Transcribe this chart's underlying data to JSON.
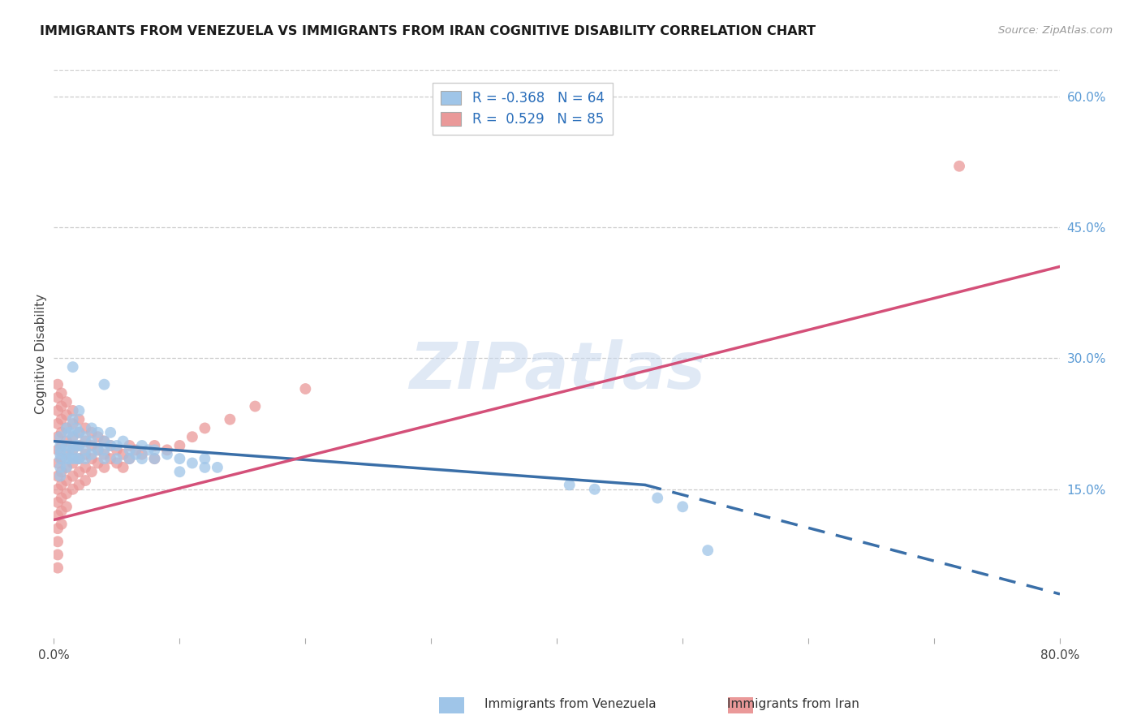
{
  "title": "IMMIGRANTS FROM VENEZUELA VS IMMIGRANTS FROM IRAN COGNITIVE DISABILITY CORRELATION CHART",
  "source": "Source: ZipAtlas.com",
  "ylabel": "Cognitive Disability",
  "x_min": 0.0,
  "x_max": 0.8,
  "y_min": -0.02,
  "y_max": 0.63,
  "y_ticks_right": [
    0.15,
    0.3,
    0.45,
    0.6
  ],
  "y_tick_labels_right": [
    "15.0%",
    "30.0%",
    "45.0%",
    "60.0%"
  ],
  "venezuela_color": "#9fc5e8",
  "iran_color": "#ea9999",
  "venezuela_R": -0.368,
  "venezuela_N": 64,
  "iran_R": 0.529,
  "iran_N": 85,
  "title_color": "#1a1a1a",
  "source_color": "#999999",
  "grid_color": "#cccccc",
  "watermark": "ZIPatlas",
  "venezuela_scatter": [
    [
      0.005,
      0.195
    ],
    [
      0.005,
      0.185
    ],
    [
      0.005,
      0.175
    ],
    [
      0.005,
      0.165
    ],
    [
      0.005,
      0.21
    ],
    [
      0.005,
      0.2
    ],
    [
      0.005,
      0.19
    ],
    [
      0.01,
      0.22
    ],
    [
      0.01,
      0.2
    ],
    [
      0.01,
      0.185
    ],
    [
      0.01,
      0.175
    ],
    [
      0.012,
      0.215
    ],
    [
      0.012,
      0.195
    ],
    [
      0.012,
      0.185
    ],
    [
      0.015,
      0.23
    ],
    [
      0.015,
      0.21
    ],
    [
      0.015,
      0.195
    ],
    [
      0.015,
      0.185
    ],
    [
      0.018,
      0.22
    ],
    [
      0.018,
      0.2
    ],
    [
      0.018,
      0.185
    ],
    [
      0.02,
      0.24
    ],
    [
      0.02,
      0.215
    ],
    [
      0.02,
      0.2
    ],
    [
      0.02,
      0.185
    ],
    [
      0.025,
      0.195
    ],
    [
      0.025,
      0.21
    ],
    [
      0.025,
      0.185
    ],
    [
      0.03,
      0.22
    ],
    [
      0.03,
      0.205
    ],
    [
      0.03,
      0.19
    ],
    [
      0.035,
      0.195
    ],
    [
      0.035,
      0.215
    ],
    [
      0.04,
      0.205
    ],
    [
      0.04,
      0.185
    ],
    [
      0.04,
      0.195
    ],
    [
      0.045,
      0.2
    ],
    [
      0.045,
      0.215
    ],
    [
      0.05,
      0.2
    ],
    [
      0.05,
      0.185
    ],
    [
      0.055,
      0.205
    ],
    [
      0.06,
      0.195
    ],
    [
      0.06,
      0.185
    ],
    [
      0.065,
      0.19
    ],
    [
      0.07,
      0.2
    ],
    [
      0.07,
      0.185
    ],
    [
      0.075,
      0.195
    ],
    [
      0.08,
      0.185
    ],
    [
      0.08,
      0.195
    ],
    [
      0.09,
      0.19
    ],
    [
      0.1,
      0.185
    ],
    [
      0.1,
      0.17
    ],
    [
      0.11,
      0.18
    ],
    [
      0.12,
      0.175
    ],
    [
      0.12,
      0.185
    ],
    [
      0.13,
      0.175
    ],
    [
      0.015,
      0.29
    ],
    [
      0.04,
      0.27
    ],
    [
      0.41,
      0.155
    ],
    [
      0.43,
      0.15
    ],
    [
      0.48,
      0.14
    ],
    [
      0.5,
      0.13
    ],
    [
      0.52,
      0.08
    ]
  ],
  "iran_scatter": [
    [
      0.003,
      0.27
    ],
    [
      0.003,
      0.255
    ],
    [
      0.003,
      0.24
    ],
    [
      0.003,
      0.225
    ],
    [
      0.003,
      0.21
    ],
    [
      0.003,
      0.195
    ],
    [
      0.003,
      0.18
    ],
    [
      0.003,
      0.165
    ],
    [
      0.003,
      0.15
    ],
    [
      0.003,
      0.135
    ],
    [
      0.003,
      0.12
    ],
    [
      0.003,
      0.105
    ],
    [
      0.003,
      0.09
    ],
    [
      0.003,
      0.075
    ],
    [
      0.003,
      0.06
    ],
    [
      0.006,
      0.26
    ],
    [
      0.006,
      0.245
    ],
    [
      0.006,
      0.23
    ],
    [
      0.006,
      0.215
    ],
    [
      0.006,
      0.2
    ],
    [
      0.006,
      0.185
    ],
    [
      0.006,
      0.17
    ],
    [
      0.006,
      0.155
    ],
    [
      0.006,
      0.14
    ],
    [
      0.006,
      0.125
    ],
    [
      0.006,
      0.11
    ],
    [
      0.01,
      0.25
    ],
    [
      0.01,
      0.235
    ],
    [
      0.01,
      0.22
    ],
    [
      0.01,
      0.205
    ],
    [
      0.01,
      0.19
    ],
    [
      0.01,
      0.175
    ],
    [
      0.01,
      0.16
    ],
    [
      0.01,
      0.145
    ],
    [
      0.01,
      0.13
    ],
    [
      0.015,
      0.24
    ],
    [
      0.015,
      0.225
    ],
    [
      0.015,
      0.21
    ],
    [
      0.015,
      0.195
    ],
    [
      0.015,
      0.18
    ],
    [
      0.015,
      0.165
    ],
    [
      0.015,
      0.15
    ],
    [
      0.02,
      0.23
    ],
    [
      0.02,
      0.215
    ],
    [
      0.02,
      0.2
    ],
    [
      0.02,
      0.185
    ],
    [
      0.02,
      0.17
    ],
    [
      0.02,
      0.155
    ],
    [
      0.025,
      0.22
    ],
    [
      0.025,
      0.205
    ],
    [
      0.025,
      0.19
    ],
    [
      0.025,
      0.175
    ],
    [
      0.025,
      0.16
    ],
    [
      0.03,
      0.215
    ],
    [
      0.03,
      0.2
    ],
    [
      0.03,
      0.185
    ],
    [
      0.03,
      0.17
    ],
    [
      0.035,
      0.21
    ],
    [
      0.035,
      0.195
    ],
    [
      0.035,
      0.18
    ],
    [
      0.04,
      0.205
    ],
    [
      0.04,
      0.19
    ],
    [
      0.04,
      0.175
    ],
    [
      0.045,
      0.2
    ],
    [
      0.045,
      0.185
    ],
    [
      0.05,
      0.195
    ],
    [
      0.05,
      0.18
    ],
    [
      0.055,
      0.19
    ],
    [
      0.055,
      0.175
    ],
    [
      0.06,
      0.2
    ],
    [
      0.06,
      0.185
    ],
    [
      0.065,
      0.195
    ],
    [
      0.07,
      0.19
    ],
    [
      0.08,
      0.2
    ],
    [
      0.08,
      0.185
    ],
    [
      0.09,
      0.195
    ],
    [
      0.1,
      0.2
    ],
    [
      0.11,
      0.21
    ],
    [
      0.12,
      0.22
    ],
    [
      0.14,
      0.23
    ],
    [
      0.16,
      0.245
    ],
    [
      0.2,
      0.265
    ],
    [
      0.72,
      0.52
    ]
  ],
  "venezuela_line_solid": {
    "x0": 0.0,
    "y0": 0.205,
    "x1": 0.47,
    "y1": 0.155
  },
  "venezuela_line_dashed": {
    "x0": 0.47,
    "y0": 0.155,
    "x1": 0.8,
    "y1": 0.03
  },
  "iran_line": {
    "x0": 0.0,
    "y0": 0.115,
    "x1": 0.8,
    "y1": 0.405
  },
  "background_color": "#ffffff",
  "line_blue": "#3a6fa8",
  "line_pink": "#d45079",
  "legend_label_color": "#2a6eba",
  "legend_frame_color": "#cccccc"
}
